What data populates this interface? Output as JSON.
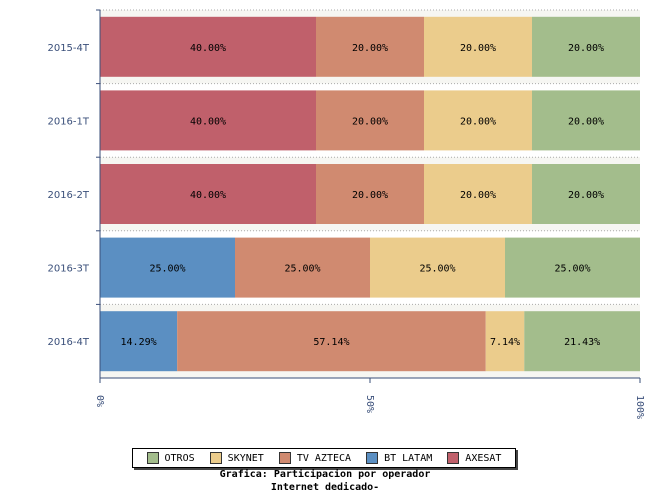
{
  "chart_data": {
    "type": "bar",
    "orientation": "horizontal",
    "stacked": "percent",
    "categories": [
      "2015-4T",
      "2016-1T",
      "2016-2T",
      "2016-3T",
      "2016-4T"
    ],
    "series": [
      {
        "name": "AXESAT",
        "color": "#c0606b",
        "values": [
          40,
          40,
          40,
          0,
          0
        ],
        "labels": [
          "40.00%",
          "40.00%",
          "40.00%",
          "",
          ""
        ]
      },
      {
        "name": "BT LATAM",
        "color": "#5b8fc2",
        "values": [
          0,
          0,
          0,
          25,
          14.29
        ],
        "labels": [
          "",
          "",
          "",
          "25.00%",
          "14.29%"
        ]
      },
      {
        "name": "TV AZTECA",
        "color": "#d08a70",
        "values": [
          20,
          20,
          20,
          25,
          57.14
        ],
        "labels": [
          "20.00%",
          "20.00%",
          "20.00%",
          "25.00%",
          "57.14%"
        ]
      },
      {
        "name": "SKYNET",
        "color": "#ebcc8c",
        "values": [
          20,
          20,
          20,
          25,
          7.14
        ],
        "labels": [
          "20.00%",
          "20.00%",
          "20.00%",
          "25.00%",
          "7.14%"
        ]
      },
      {
        "name": "OTROS",
        "color": "#a3bd8c",
        "values": [
          20,
          20,
          20,
          25,
          21.43
        ],
        "labels": [
          "20.00%",
          "20.00%",
          "20.00%",
          "25.00%",
          "21.43%"
        ]
      }
    ],
    "xlim": [
      0,
      100
    ],
    "x_ticks": [
      "0%",
      "50%",
      "100%"
    ],
    "grid": true,
    "legend_position": "bottom",
    "legend_order": [
      "OTROS",
      "SKYNET",
      "TV AZTECA",
      "BT LATAM",
      "AXESAT"
    ],
    "caption_line1": "Grafica: Participacion por operador",
    "caption_line2": "Internet dedicado-"
  }
}
